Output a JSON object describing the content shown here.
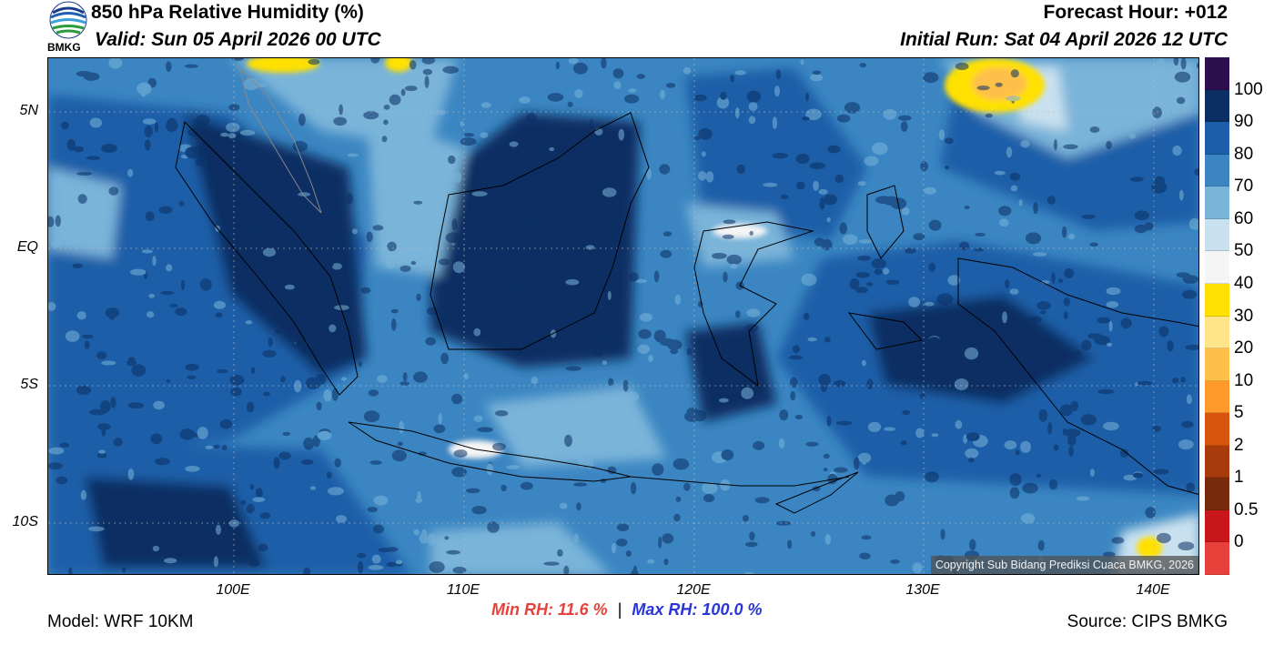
{
  "header": {
    "title": "850 hPa Relative Humidity (%)",
    "valid": "Valid: Sun 05 April 2026 00 UTC",
    "forecast_hour": "Forecast Hour: +012",
    "initial_run": "Initial Run: Sat 04 April 2026 12 UTC",
    "logo_text": "BMKG"
  },
  "map": {
    "lat_labels": [
      "5N",
      "EQ",
      "5S",
      "10S"
    ],
    "lon_labels": [
      "100E",
      "110E",
      "120E",
      "130E",
      "140E"
    ],
    "copyright": "Copyright Sub Bidang Prediksi Cuaca BMKG, 2026"
  },
  "legend": {
    "labels": [
      "100",
      "90",
      "80",
      "70",
      "60",
      "50",
      "40",
      "30",
      "20",
      "10",
      "5",
      "2",
      "1",
      "0.5",
      "0"
    ],
    "colors": [
      "#2d0e4f",
      "#0b2f63",
      "#1c5fa8",
      "#3b86c2",
      "#7ab4d9",
      "#c9e1ef",
      "#f5f5f5",
      "#ffe000",
      "#ffe48a",
      "#ffc04a",
      "#ff9a2a",
      "#d8540c",
      "#a83a0c",
      "#7a2a0c",
      "#c8161b",
      "#e8413b"
    ]
  },
  "stats": {
    "min": "Min RH:  11.6 %",
    "sep": "|",
    "max": "Max RH: 100.0 %"
  },
  "footer": {
    "model": "Model: WRF 10KM",
    "source": "Source: CIPS BMKG"
  }
}
